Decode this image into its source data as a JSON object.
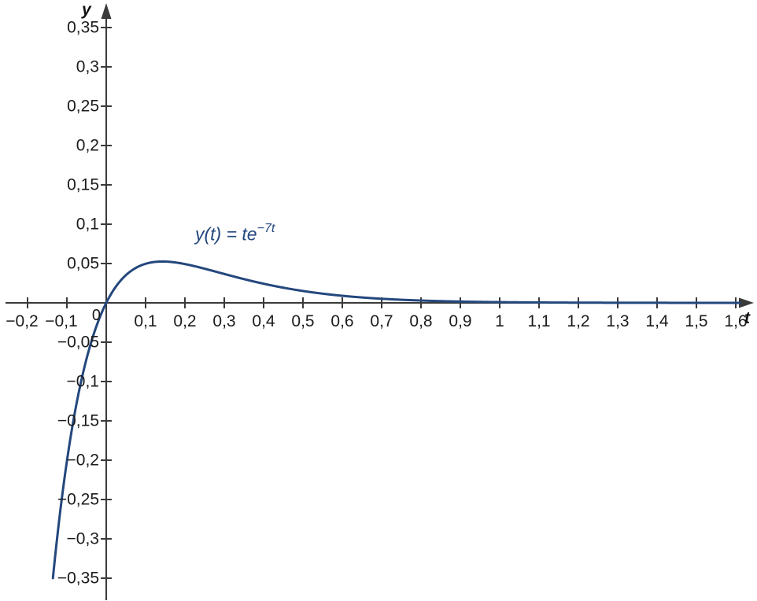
{
  "figure": {
    "background": "#ffffff",
    "axis_color": "#3a3a3a",
    "text_color": "#1b1b1b",
    "decimal_separator": ","
  },
  "chart_data": {
    "type": "line",
    "title": "",
    "grid": false,
    "legend": false,
    "formula": "y(t) = t·e^(−7t)",
    "curve_label_prefix": "y(t) = te",
    "curve_label_superscript": "−7t",
    "x_axis": {
      "label": "t",
      "origin_label": "0",
      "range": [
        -0.26,
        1.65
      ],
      "tick_step": 0.1,
      "tick_values": [
        -0.2,
        -0.1,
        0.1,
        0.2,
        0.3,
        0.4,
        0.5,
        0.6,
        0.7,
        0.8,
        0.9,
        1,
        1.1,
        1.2,
        1.3,
        1.4,
        1.5,
        1.6
      ],
      "tick_labels": [
        "−0,2",
        "−0,1",
        "0,1",
        "0,2",
        "0,3",
        "0,4",
        "0,5",
        "0,6",
        "0,7",
        "0,8",
        "0,9",
        "1",
        "1,1",
        "1,2",
        "1,3",
        "1,4",
        "1,5",
        "1,6"
      ]
    },
    "y_axis": {
      "label": "y",
      "range": [
        -0.38,
        0.38
      ],
      "tick_step": 0.05,
      "tick_values": [
        0.35,
        0.3,
        0.25,
        0.2,
        0.15,
        0.1,
        0.05,
        -0.05,
        -0.1,
        -0.15,
        -0.2,
        -0.25,
        -0.3,
        -0.35
      ],
      "tick_labels": [
        "0,35",
        "0,3",
        "0,25",
        "0,2",
        "0,15",
        "0,1",
        "0,05",
        "−0,05",
        "−0,1",
        "−0,15",
        "−0,2",
        "−0,25",
        "−0,3",
        "−0,35"
      ]
    },
    "series": [
      {
        "name": "y(t) = te^(−7t)",
        "color": "#24477d",
        "exp_rate": -7,
        "t_start": -0.1355,
        "t_end": 1.61,
        "x_intercept": 0,
        "maximum": {
          "t": 0.1429,
          "y": 0.0526
        },
        "sample_points": [
          {
            "t": -0.1355,
            "y": -0.35
          },
          {
            "t": -0.1,
            "y": -0.2014
          },
          {
            "t": -0.05,
            "y": -0.071
          },
          {
            "t": 0,
            "y": 0
          },
          {
            "t": 0.05,
            "y": 0.0352
          },
          {
            "t": 0.1,
            "y": 0.0497
          },
          {
            "t": 0.1429,
            "y": 0.0526
          },
          {
            "t": 0.2,
            "y": 0.0493
          },
          {
            "t": 0.3,
            "y": 0.0367
          },
          {
            "t": 0.4,
            "y": 0.0243
          },
          {
            "t": 0.5,
            "y": 0.0151
          },
          {
            "t": 0.6,
            "y": 0.009
          },
          {
            "t": 0.7,
            "y": 0.0052
          },
          {
            "t": 0.8,
            "y": 0.003
          },
          {
            "t": 0.9,
            "y": 0.0017
          },
          {
            "t": 1.0,
            "y": 0.0009
          },
          {
            "t": 1.2,
            "y": 0.0003
          },
          {
            "t": 1.4,
            "y": 0.0001
          },
          {
            "t": 1.6,
            "y": 0.0
          }
        ]
      }
    ]
  }
}
